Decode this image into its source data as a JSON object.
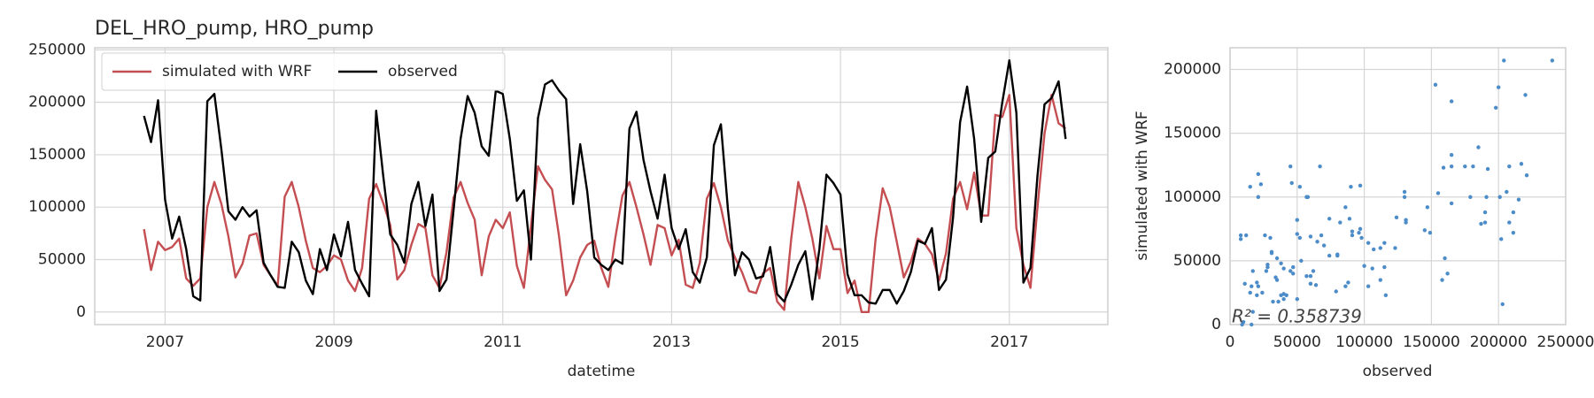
{
  "chart_data": [
    {
      "type": "line",
      "title": "DEL_HRO_pump, HRO_pump",
      "xlabel": "datetime",
      "x": [
        "2006-10",
        "2006-11",
        "2006-12",
        "2007-01",
        "2007-02",
        "2007-03",
        "2007-04",
        "2007-05",
        "2007-06",
        "2007-07",
        "2007-08",
        "2007-09",
        "2007-10",
        "2007-11",
        "2007-12",
        "2008-01",
        "2008-02",
        "2008-03",
        "2008-04",
        "2008-05",
        "2008-06",
        "2008-07",
        "2008-08",
        "2008-09",
        "2008-10",
        "2008-11",
        "2008-12",
        "2009-01",
        "2009-02",
        "2009-03",
        "2009-04",
        "2009-05",
        "2009-06",
        "2009-07",
        "2009-08",
        "2009-09",
        "2009-10",
        "2009-11",
        "2009-12",
        "2010-01",
        "2010-02",
        "2010-03",
        "2010-04",
        "2010-05",
        "2010-06",
        "2010-07",
        "2010-08",
        "2010-09",
        "2010-10",
        "2010-11",
        "2010-12",
        "2011-01",
        "2011-02",
        "2011-03",
        "2011-04",
        "2011-05",
        "2011-06",
        "2011-07",
        "2011-08",
        "2011-09",
        "2011-10",
        "2011-11",
        "2011-12",
        "2012-01",
        "2012-02",
        "2012-03",
        "2012-04",
        "2012-05",
        "2012-06",
        "2012-07",
        "2012-08",
        "2012-09",
        "2012-10",
        "2012-11",
        "2012-12",
        "2013-01",
        "2013-02",
        "2013-03",
        "2013-04",
        "2013-05",
        "2013-06",
        "2013-07",
        "2013-08",
        "2013-09",
        "2013-10",
        "2013-11",
        "2013-12",
        "2014-01",
        "2014-02",
        "2014-03",
        "2014-04",
        "2014-05",
        "2014-06",
        "2014-07",
        "2014-08",
        "2014-09",
        "2014-10",
        "2014-11",
        "2014-12",
        "2015-01",
        "2015-02",
        "2015-03",
        "2015-04",
        "2015-05",
        "2015-06",
        "2015-07",
        "2015-08",
        "2015-09",
        "2015-10",
        "2015-11",
        "2015-12",
        "2016-01",
        "2016-02",
        "2016-03",
        "2016-04",
        "2016-05",
        "2016-06",
        "2016-07",
        "2016-08",
        "2016-09",
        "2016-10",
        "2016-11",
        "2016-12",
        "2017-01",
        "2017-02",
        "2017-03",
        "2017-04",
        "2017-05",
        "2017-06",
        "2017-07",
        "2017-08",
        "2017-09"
      ],
      "series": [
        {
          "name": "simulated with WRF",
          "color": "#c44e52",
          "values": [
            79000,
            40000,
            67000,
            59000,
            62000,
            70000,
            32000,
            25000,
            32000,
            100000,
            124000,
            103000,
            72000,
            33000,
            46000,
            73000,
            75000,
            45000,
            35000,
            25000,
            110000,
            124000,
            100000,
            68000,
            42000,
            38000,
            44000,
            54000,
            50000,
            30000,
            20000,
            42000,
            108000,
            122000,
            104000,
            83000,
            31000,
            40000,
            64000,
            84000,
            80000,
            35000,
            23000,
            57000,
            109000,
            124000,
            104000,
            88000,
            35000,
            72000,
            88000,
            80000,
            95000,
            44000,
            23000,
            82000,
            139000,
            126000,
            117000,
            72000,
            16000,
            30000,
            52000,
            64000,
            68000,
            42000,
            24000,
            71000,
            111000,
            124000,
            100000,
            74000,
            45000,
            83000,
            80000,
            54000,
            69000,
            26000,
            23000,
            47000,
            108000,
            123000,
            100000,
            68000,
            52000,
            38000,
            20000,
            18000,
            37000,
            42000,
            10000,
            2000,
            70000,
            124000,
            100000,
            70000,
            32000,
            82000,
            60000,
            60000,
            18000,
            30000,
            0,
            0,
            70000,
            118000,
            100000,
            67000,
            33000,
            48000,
            70000,
            65000,
            55000,
            30000,
            56000,
            108000,
            124000,
            98000,
            133000,
            92000,
            92000,
            188000,
            186000,
            207000,
            80000,
            45000,
            23000,
            100000,
            170000,
            207000,
            180000,
            175000
          ]
        },
        {
          "name": "observed",
          "color": "#000000",
          "values": [
            187000,
            162000,
            202000,
            107000,
            70000,
            91000,
            60000,
            15000,
            11000,
            201000,
            208000,
            155000,
            96000,
            88000,
            100000,
            91000,
            97000,
            47000,
            35000,
            24000,
            23000,
            67000,
            57000,
            30000,
            17000,
            60000,
            40000,
            74000,
            53000,
            86000,
            40000,
            27000,
            15000,
            192000,
            130000,
            74000,
            64000,
            47000,
            103000,
            124000,
            82000,
            112000,
            20000,
            31000,
            97000,
            165000,
            206000,
            190000,
            158000,
            149000,
            211000,
            208000,
            165000,
            106000,
            116000,
            50000,
            185000,
            217000,
            221000,
            211000,
            203000,
            103000,
            160000,
            115000,
            52000,
            45000,
            40000,
            50000,
            46000,
            175000,
            191000,
            145000,
            115000,
            89000,
            131000,
            80000,
            60000,
            79000,
            38000,
            28000,
            52000,
            159000,
            179000,
            98000,
            35000,
            57000,
            50000,
            32000,
            34000,
            62000,
            17000,
            10000,
            26000,
            45000,
            58000,
            12000,
            60000,
            131000,
            123000,
            112000,
            36000,
            16000,
            16000,
            9000,
            8000,
            21000,
            21000,
            8000,
            20000,
            38000,
            68000,
            65000,
            80000,
            21000,
            31000,
            90000,
            181000,
            215000,
            165000,
            86000,
            147000,
            153000,
            200000,
            240000,
            190000,
            28000,
            42000,
            130000,
            198000,
            204000,
            220000,
            165000
          ]
        }
      ],
      "xlim": [
        "2006-03",
        "2018-03"
      ],
      "xticks": [
        "2007",
        "2009",
        "2011",
        "2013",
        "2015",
        "2017"
      ],
      "ylim": [
        -12000,
        252000
      ],
      "yticks": [
        0,
        50000,
        100000,
        150000,
        200000,
        250000
      ],
      "grid": true,
      "legend": "upper left"
    },
    {
      "type": "scatter",
      "xlabel": "observed",
      "ylabel": "simulated with WRF",
      "annotation": "R² = 0.358739",
      "color": "#4c8cc8",
      "xlim": [
        0,
        250000
      ],
      "xticks": [
        0,
        50000,
        100000,
        150000,
        200000,
        250000
      ],
      "ylim": [
        0,
        217000
      ],
      "yticks": [
        0,
        50000,
        100000,
        150000,
        200000
      ],
      "grid": true
    }
  ]
}
